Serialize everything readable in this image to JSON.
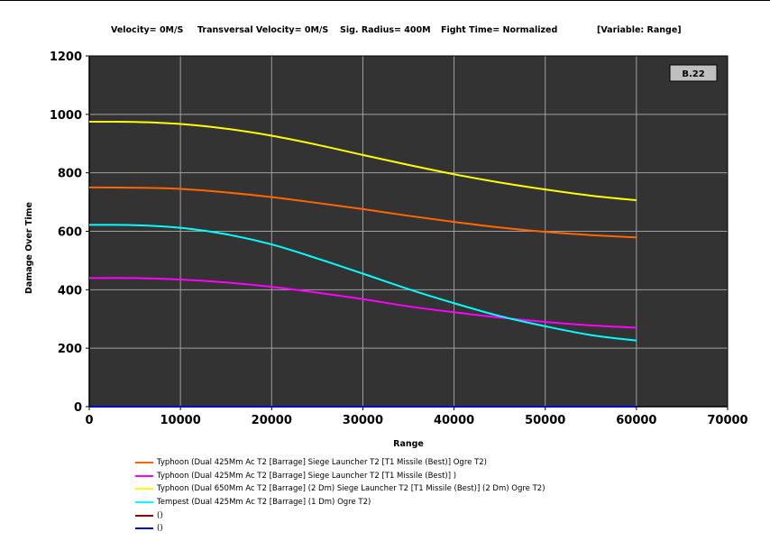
{
  "header": {
    "velocity": "Velocity= 0M/S",
    "transversal": "Transversal Velocity= 0M/S",
    "sig_radius": "Sig. Radius= 400M",
    "fight_time": "Fight Time= Normalized",
    "variable": "[Variable: Range]"
  },
  "chart_data": {
    "type": "line",
    "title": "",
    "xlabel": "Range",
    "ylabel": "Damage Over Time",
    "xlim": [
      0,
      70000
    ],
    "ylim": [
      0,
      1200
    ],
    "xticks": [
      0,
      10000,
      20000,
      30000,
      40000,
      50000,
      60000,
      70000
    ],
    "yticks": [
      0,
      200,
      400,
      600,
      800,
      1000,
      1200
    ],
    "grid": true,
    "background": "#333333",
    "annotation": "B.22",
    "legend_position": "bottom",
    "series": [
      {
        "name": "Typhoon (Dual 425Mm Ac T2 [Barrage] Siege Launcher T2 [T1 Missile (Best)] Ogre T2)",
        "color": "#ff6600",
        "x": [
          0,
          5000,
          10000,
          15000,
          20000,
          25000,
          30000,
          35000,
          40000,
          45000,
          50000,
          55000,
          60000
        ],
        "y": [
          750,
          749,
          745,
          733,
          717,
          697,
          676,
          653,
          632,
          613,
          598,
          587,
          579
        ]
      },
      {
        "name": "Typhoon (Dual 425Mm Ac T2 [Barrage] Siege Launcher T2 [T1 Missile (Best)] )",
        "color": "#ff00ff",
        "x": [
          0,
          5000,
          10000,
          15000,
          20000,
          25000,
          30000,
          35000,
          40000,
          45000,
          50000,
          55000,
          60000
        ],
        "y": [
          440,
          440,
          435,
          425,
          410,
          390,
          368,
          343,
          323,
          305,
          290,
          278,
          270
        ]
      },
      {
        "name": "Typhoon (Dual 650Mm Ac T2 [Barrage] (2 Dm) Siege Launcher T2 [T1 Missile (Best)] (2 Dm) Ogre T2)",
        "color": "#ffff00",
        "x": [
          0,
          5000,
          10000,
          15000,
          20000,
          25000,
          30000,
          35000,
          40000,
          45000,
          50000,
          55000,
          60000
        ],
        "y": [
          975,
          974,
          967,
          951,
          927,
          896,
          861,
          827,
          795,
          767,
          743,
          722,
          706
        ]
      },
      {
        "name": "Tempest (Dual 425Mm Ac T2 [Barrage] (1 Dm) Ogre T2)",
        "color": "#00ffff",
        "x": [
          0,
          5000,
          10000,
          15000,
          20000,
          25000,
          30000,
          35000,
          40000,
          45000,
          50000,
          55000,
          60000
        ],
        "y": [
          622,
          621,
          612,
          590,
          555,
          507,
          455,
          402,
          354,
          310,
          275,
          245,
          226
        ]
      },
      {
        "name": "()",
        "color": "#990000",
        "x": [],
        "y": []
      },
      {
        "name": "()",
        "color": "#0000cc",
        "x": [
          0,
          60000
        ],
        "y": [
          0,
          0
        ]
      }
    ]
  }
}
